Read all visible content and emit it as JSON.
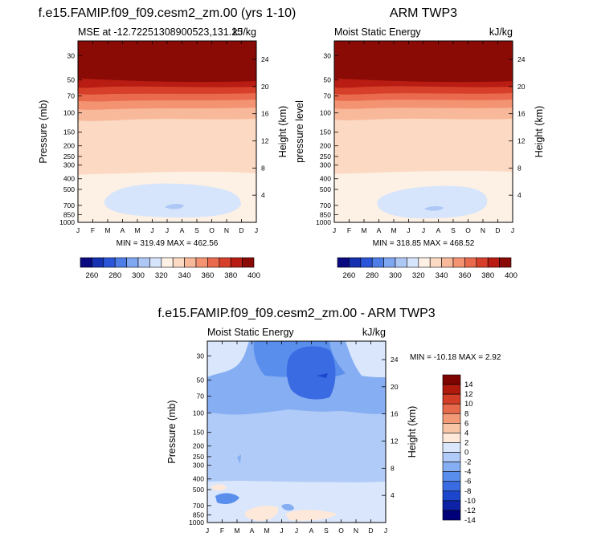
{
  "colors": {
    "top_scale": [
      "#0a0a80",
      "#1530b0",
      "#2a55d8",
      "#4d7ee8",
      "#7fa6f0",
      "#aec8f5",
      "#d6e5fb",
      "#fdf0e4",
      "#fbd9c2",
      "#f8b89a",
      "#f39372",
      "#ea6a4d",
      "#d6402a",
      "#b81c12",
      "#8a0a05"
    ],
    "diff_scale": [
      "#00007a",
      "#0d22a5",
      "#1c47cd",
      "#3a6be2",
      "#5a8eed",
      "#86aef3",
      "#b0cbf7",
      "#d9e6fb",
      "#fde8da",
      "#f8c5a6",
      "#f29a76",
      "#e66a4b",
      "#d23d25",
      "#b01a0d",
      "#7d0400"
    ]
  },
  "chart_data": [
    {
      "type": "heatmap",
      "title": "f.e15.FAMIP.f09_f09.cesm2_zm.00 (yrs 1-10)",
      "subtitle_left": "MSE at -12.72251308900523,131.25",
      "subtitle_right": "kJ/kg",
      "ylabel": "Pressure (mb)",
      "ylabel_right": "Height (km)",
      "x_ticks": [
        "J",
        "F",
        "M",
        "A",
        "M",
        "J",
        "J",
        "A",
        "S",
        "O",
        "N",
        "D",
        "J"
      ],
      "y_ticks": [
        "30",
        "50",
        "70",
        "100",
        "150",
        "200",
        "250",
        "300",
        "400",
        "500",
        "700",
        "850",
        "1000"
      ],
      "y_ticks_right": [
        "24",
        "20",
        "16",
        "12",
        "8",
        "4"
      ],
      "stats": "MIN = 319.49 MAX = 462.56",
      "colorbar_labels": [
        "260",
        "280",
        "300",
        "320",
        "340",
        "360",
        "380",
        "400"
      ],
      "log_y": true
    },
    {
      "type": "heatmap",
      "title": "ARM TWP3",
      "subtitle_left": "Moist Static Energy",
      "subtitle_right": "kJ/kg",
      "ylabel_right": "Height (km)",
      "ylabel_left": "pressure level",
      "x_ticks": [
        "J",
        "F",
        "M",
        "A",
        "M",
        "J",
        "J",
        "A",
        "S",
        "O",
        "N",
        "D",
        "J"
      ],
      "y_ticks": [
        "30",
        "50",
        "70",
        "100",
        "150",
        "200",
        "250",
        "300",
        "400",
        "500",
        "700",
        "850",
        "1000"
      ],
      "y_ticks_right": [
        "24",
        "20",
        "16",
        "12",
        "8",
        "4"
      ],
      "stats": "MIN = 318.85 MAX = 468.52",
      "colorbar_labels": [
        "260",
        "280",
        "300",
        "320",
        "340",
        "360",
        "380",
        "400"
      ],
      "log_y": true
    },
    {
      "type": "heatmap",
      "title": "f.e15.FAMIP.f09_f09.cesm2_zm.00 - ARM TWP3",
      "subtitle_left": "Moist Static Energy",
      "subtitle_right": "kJ/kg",
      "ylabel": "Pressure (mb)",
      "ylabel_right": "Height (km)",
      "x_ticks": [
        "J",
        "F",
        "M",
        "A",
        "M",
        "J",
        "J",
        "A",
        "S",
        "O",
        "N",
        "D",
        "J"
      ],
      "y_ticks": [
        "30",
        "50",
        "70",
        "100",
        "150",
        "200",
        "250",
        "300",
        "400",
        "500",
        "700",
        "850",
        "1000"
      ],
      "y_ticks_right": [
        "24",
        "20",
        "16",
        "12",
        "8",
        "4"
      ],
      "stats": "MIN = -10.18 MAX =  2.92",
      "colorbar_labels": [
        "14",
        "12",
        "10",
        "8",
        "6",
        "4",
        "2",
        "0",
        "-2",
        "-4",
        "-6",
        "-8",
        "-10",
        "-12",
        "-14"
      ],
      "log_y": true
    }
  ]
}
